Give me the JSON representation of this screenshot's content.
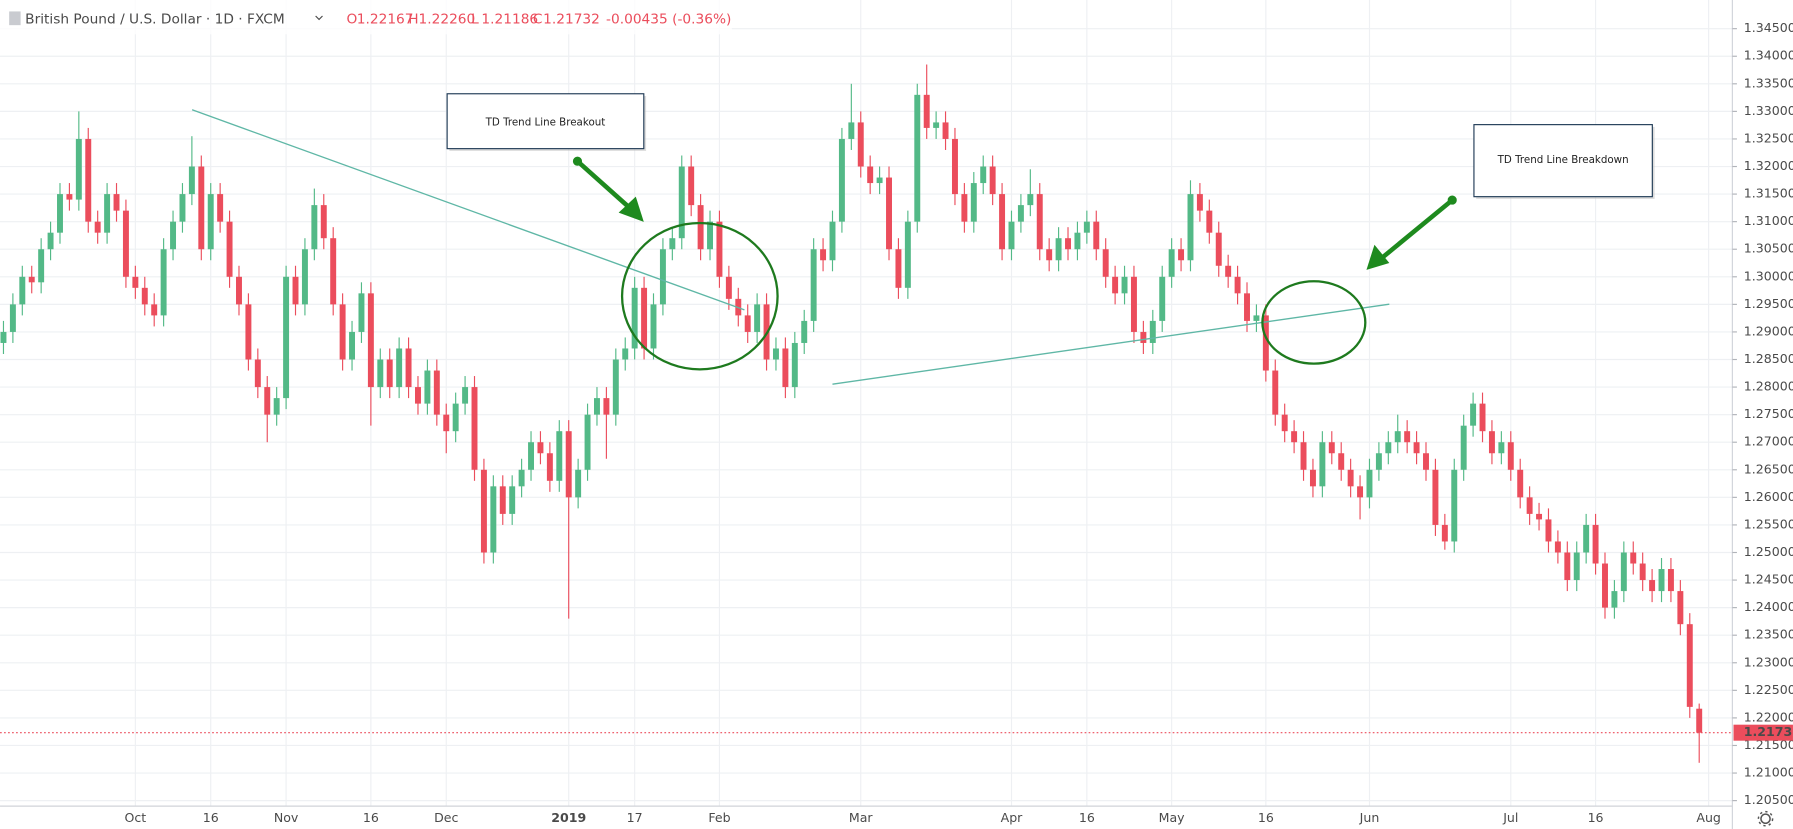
{
  "chart_data": {
    "type": "candlestick",
    "title": "British Pound / U.S. Dollar · 1D · FXCM",
    "ohlc_keys": [
      "O",
      "H",
      "L",
      "C"
    ],
    "header_values": [
      "1.22167",
      "1.22260",
      "1.21186",
      "1.21732"
    ],
    "change_label": "-0.00435 (-0.36%)",
    "annotations": [
      "TD Trend Line Breakout",
      "TD Trend Line Breakdown"
    ],
    "up_color": "#53b987",
    "down_color": "#eb4d5c",
    "grid": true,
    "categories": [
      null,
      null,
      null,
      null,
      null,
      null,
      null,
      null,
      null,
      null,
      null,
      null,
      null,
      null,
      "Oct",
      null,
      null,
      null,
      null,
      null,
      null,
      null,
      "16",
      null,
      null,
      null,
      null,
      null,
      null,
      null,
      "Nov",
      null,
      null,
      null,
      null,
      null,
      null,
      null,
      null,
      "16",
      null,
      null,
      null,
      null,
      null,
      null,
      null,
      "Dec",
      null,
      null,
      null,
      null,
      null,
      null,
      null,
      null,
      null,
      null,
      null,
      null,
      "2019",
      null,
      null,
      null,
      null,
      null,
      null,
      "17",
      null,
      null,
      null,
      null,
      null,
      null,
      null,
      null,
      "Feb",
      null,
      null,
      null,
      null,
      null,
      null,
      null,
      null,
      null,
      null,
      null,
      null,
      null,
      null,
      "Mar",
      null,
      null,
      null,
      null,
      null,
      null,
      null,
      null,
      null,
      null,
      null,
      null,
      null,
      null,
      null,
      "Apr",
      null,
      null,
      null,
      null,
      null,
      null,
      null,
      "16",
      null,
      null,
      null,
      null,
      null,
      null,
      null,
      null,
      "May",
      null,
      null,
      null,
      null,
      null,
      null,
      null,
      null,
      null,
      "16",
      null,
      null,
      null,
      null,
      null,
      null,
      null,
      null,
      null,
      null,
      "Jun",
      null,
      null,
      null,
      null,
      null,
      null,
      null,
      null,
      null,
      null,
      null,
      null,
      null,
      null,
      "Jul",
      null,
      null,
      null,
      null,
      null,
      null,
      null,
      null,
      "16",
      null,
      null,
      null,
      null,
      null,
      null,
      null,
      null,
      null,
      null,
      null,
      "Aug"
    ],
    "open": [
      1.288,
      1.29,
      1.295,
      1.3,
      1.299,
      1.305,
      1.308,
      1.315,
      1.314,
      1.325,
      1.31,
      1.308,
      1.315,
      1.312,
      1.3,
      1.298,
      1.295,
      1.293,
      1.305,
      1.31,
      1.315,
      1.32,
      1.305,
      1.315,
      1.31,
      1.3,
      1.295,
      1.285,
      1.28,
      1.275,
      1.278,
      1.3,
      1.295,
      1.305,
      1.313,
      1.307,
      1.295,
      1.285,
      1.29,
      1.297,
      1.28,
      1.285,
      1.28,
      1.287,
      1.28,
      1.277,
      1.283,
      1.275,
      1.272,
      1.277,
      1.28,
      1.265,
      1.25,
      1.262,
      1.257,
      1.262,
      1.265,
      1.27,
      1.268,
      1.263,
      1.272,
      1.26,
      1.265,
      1.275,
      1.278,
      1.275,
      1.285,
      1.287,
      1.298,
      1.287,
      1.295,
      1.305,
      1.307,
      1.32,
      1.313,
      1.305,
      1.31,
      1.3,
      1.296,
      1.293,
      1.29,
      1.295,
      1.285,
      1.287,
      1.28,
      1.288,
      1.292,
      1.305,
      1.303,
      1.31,
      1.325,
      1.328,
      1.32,
      1.317,
      1.318,
      1.305,
      1.298,
      1.31,
      1.333,
      1.327,
      1.328,
      1.325,
      1.315,
      1.31,
      1.317,
      1.32,
      1.315,
      1.305,
      1.31,
      1.313,
      1.315,
      1.305,
      1.303,
      1.307,
      1.305,
      1.308,
      1.31,
      1.305,
      1.3,
      1.297,
      1.3,
      1.29,
      1.288,
      1.292,
      1.3,
      1.305,
      1.303,
      1.315,
      1.312,
      1.308,
      1.302,
      1.3,
      1.297,
      1.292,
      1.293,
      1.283,
      1.275,
      1.272,
      1.27,
      1.265,
      1.262,
      1.27,
      1.268,
      1.265,
      1.262,
      1.26,
      1.265,
      1.268,
      1.27,
      1.272,
      1.27,
      1.268,
      1.265,
      1.255,
      1.252,
      1.265,
      1.273,
      1.277,
      1.272,
      1.268,
      1.27,
      1.265,
      1.26,
      1.257,
      1.256,
      1.252,
      1.25,
      1.245,
      1.25,
      1.255,
      1.248,
      1.24,
      1.243,
      1.25,
      1.248,
      1.245,
      1.243,
      1.247,
      1.243,
      1.237,
      1.22167,
      null
    ],
    "high": [
      1.292,
      1.297,
      1.302,
      1.302,
      1.307,
      1.31,
      1.317,
      1.317,
      1.33,
      1.327,
      1.312,
      1.317,
      1.317,
      1.314,
      1.302,
      1.3,
      1.297,
      1.307,
      1.312,
      1.317,
      1.3255,
      1.322,
      1.317,
      1.317,
      1.312,
      1.302,
      1.297,
      1.287,
      1.282,
      1.28,
      1.302,
      1.302,
      1.307,
      1.316,
      1.315,
      1.309,
      1.297,
      1.292,
      1.299,
      1.299,
      1.287,
      1.287,
      1.289,
      1.289,
      1.282,
      1.285,
      1.285,
      1.277,
      1.279,
      1.282,
      1.282,
      1.267,
      1.264,
      1.264,
      1.264,
      1.267,
      1.272,
      1.272,
      1.27,
      1.274,
      1.274,
      1.267,
      1.277,
      1.28,
      1.28,
      1.287,
      1.289,
      1.3,
      1.3,
      1.297,
      1.307,
      1.309,
      1.322,
      1.322,
      1.315,
      1.312,
      1.312,
      1.302,
      1.298,
      1.295,
      1.297,
      1.297,
      1.289,
      1.289,
      1.29,
      1.294,
      1.307,
      1.307,
      1.312,
      1.327,
      1.335,
      1.33,
      1.322,
      1.32,
      1.32,
      1.307,
      1.312,
      1.335,
      1.3385,
      1.33,
      1.33,
      1.327,
      1.317,
      1.319,
      1.322,
      1.322,
      1.317,
      1.312,
      1.315,
      1.3195,
      1.317,
      1.307,
      1.309,
      1.309,
      1.31,
      1.312,
      1.312,
      1.307,
      1.302,
      1.302,
      1.302,
      1.292,
      1.294,
      1.302,
      1.307,
      1.307,
      1.3175,
      1.317,
      1.314,
      1.31,
      1.304,
      1.302,
      1.299,
      1.295,
      1.295,
      1.285,
      1.277,
      1.274,
      1.272,
      1.267,
      1.272,
      1.272,
      1.27,
      1.267,
      1.264,
      1.267,
      1.27,
      1.272,
      1.275,
      1.274,
      1.272,
      1.27,
      1.267,
      1.257,
      1.267,
      1.275,
      1.279,
      1.279,
      1.274,
      1.272,
      1.272,
      1.267,
      1.262,
      1.259,
      1.258,
      1.254,
      1.252,
      1.252,
      1.257,
      1.257,
      1.25,
      1.245,
      1.252,
      1.252,
      1.25,
      1.247,
      1.249,
      1.249,
      1.245,
      1.239,
      1.2226,
      null
    ],
    "low": [
      1.286,
      1.288,
      1.293,
      1.297,
      1.297,
      1.303,
      1.306,
      1.312,
      1.312,
      1.308,
      1.306,
      1.306,
      1.31,
      1.298,
      1.296,
      1.293,
      1.291,
      1.291,
      1.303,
      1.308,
      1.313,
      1.303,
      1.303,
      1.308,
      1.298,
      1.293,
      1.283,
      1.278,
      1.27,
      1.273,
      1.276,
      1.293,
      1.293,
      1.303,
      1.305,
      1.293,
      1.283,
      1.283,
      1.288,
      1.273,
      1.278,
      1.278,
      1.278,
      1.278,
      1.275,
      1.275,
      1.273,
      1.268,
      1.27,
      1.275,
      1.263,
      1.248,
      1.248,
      1.255,
      1.255,
      1.26,
      1.263,
      1.266,
      1.261,
      1.261,
      1.238,
      1.258,
      1.263,
      1.273,
      1.267,
      1.273,
      1.283,
      1.285,
      1.285,
      1.285,
      1.293,
      1.303,
      1.305,
      1.311,
      1.303,
      1.303,
      1.298,
      1.294,
      1.291,
      1.288,
      1.288,
      1.283,
      1.283,
      1.278,
      1.278,
      1.286,
      1.29,
      1.301,
      1.301,
      1.308,
      1.323,
      1.318,
      1.315,
      1.315,
      1.303,
      1.296,
      1.296,
      1.308,
      1.325,
      1.325,
      1.323,
      1.313,
      1.308,
      1.308,
      1.315,
      1.313,
      1.303,
      1.303,
      1.308,
      1.311,
      1.303,
      1.301,
      1.301,
      1.303,
      1.303,
      1.306,
      1.303,
      1.298,
      1.295,
      1.295,
      1.288,
      1.286,
      1.286,
      1.29,
      1.298,
      1.301,
      1.301,
      1.31,
      1.306,
      1.3,
      1.298,
      1.295,
      1.29,
      1.29,
      1.281,
      1.273,
      1.27,
      1.268,
      1.263,
      1.26,
      1.26,
      1.266,
      1.263,
      1.26,
      1.256,
      1.258,
      1.263,
      1.266,
      1.268,
      1.268,
      1.266,
      1.263,
      1.253,
      1.2505,
      1.25,
      1.263,
      1.271,
      1.27,
      1.266,
      1.266,
      1.263,
      1.258,
      1.255,
      1.254,
      1.25,
      1.248,
      1.243,
      1.243,
      1.248,
      1.246,
      1.238,
      1.238,
      1.241,
      1.246,
      1.243,
      1.241,
      1.241,
      1.241,
      1.235,
      1.22,
      1.21186,
      null
    ],
    "close": [
      1.29,
      1.295,
      1.3,
      1.299,
      1.305,
      1.308,
      1.315,
      1.314,
      1.325,
      1.31,
      1.308,
      1.315,
      1.312,
      1.3,
      1.298,
      1.295,
      1.293,
      1.305,
      1.31,
      1.315,
      1.32,
      1.305,
      1.315,
      1.31,
      1.3,
      1.295,
      1.285,
      1.28,
      1.275,
      1.278,
      1.3,
      1.295,
      1.305,
      1.313,
      1.307,
      1.295,
      1.285,
      1.29,
      1.297,
      1.28,
      1.285,
      1.28,
      1.287,
      1.28,
      1.277,
      1.283,
      1.275,
      1.272,
      1.277,
      1.28,
      1.265,
      1.25,
      1.262,
      1.257,
      1.262,
      1.265,
      1.27,
      1.268,
      1.263,
      1.272,
      1.26,
      1.265,
      1.275,
      1.278,
      1.275,
      1.285,
      1.287,
      1.298,
      1.287,
      1.295,
      1.305,
      1.307,
      1.32,
      1.313,
      1.305,
      1.31,
      1.3,
      1.296,
      1.293,
      1.29,
      1.295,
      1.285,
      1.287,
      1.28,
      1.288,
      1.292,
      1.305,
      1.303,
      1.31,
      1.325,
      1.328,
      1.32,
      1.317,
      1.318,
      1.305,
      1.298,
      1.31,
      1.333,
      1.327,
      1.328,
      1.325,
      1.315,
      1.31,
      1.317,
      1.32,
      1.315,
      1.305,
      1.31,
      1.313,
      1.315,
      1.305,
      1.303,
      1.307,
      1.305,
      1.308,
      1.31,
      1.305,
      1.3,
      1.297,
      1.3,
      1.29,
      1.288,
      1.292,
      1.3,
      1.305,
      1.303,
      1.315,
      1.312,
      1.308,
      1.302,
      1.3,
      1.297,
      1.292,
      1.293,
      1.283,
      1.275,
      1.272,
      1.27,
      1.265,
      1.262,
      1.27,
      1.268,
      1.265,
      1.262,
      1.26,
      1.265,
      1.268,
      1.27,
      1.272,
      1.27,
      1.268,
      1.265,
      1.255,
      1.252,
      1.265,
      1.273,
      1.277,
      1.272,
      1.268,
      1.27,
      1.265,
      1.26,
      1.257,
      1.256,
      1.252,
      1.25,
      1.245,
      1.25,
      1.255,
      1.248,
      1.24,
      1.243,
      1.25,
      1.248,
      1.245,
      1.243,
      1.247,
      1.243,
      1.237,
      1.222,
      1.21732,
      null
    ],
    "ylim": [
      1.204,
      1.3502
    ],
    "yticks": [
      {
        "value": 1.205,
        "label": "1.20500"
      },
      {
        "value": 1.21,
        "label": "1.21000"
      },
      {
        "value": 1.215,
        "label": "1.21500"
      },
      {
        "value": 1.22,
        "label": "1.22000"
      },
      {
        "value": 1.225,
        "label": "1.22500"
      },
      {
        "value": 1.23,
        "label": "1.23000"
      },
      {
        "value": 1.235,
        "label": "1.23500"
      },
      {
        "value": 1.24,
        "label": "1.24000"
      },
      {
        "value": 1.245,
        "label": "1.24500"
      },
      {
        "value": 1.25,
        "label": "1.25000"
      },
      {
        "value": 1.255,
        "label": "1.25500"
      },
      {
        "value": 1.26,
        "label": "1.26000"
      },
      {
        "value": 1.265,
        "label": "1.26500"
      },
      {
        "value": 1.27,
        "label": "1.27000"
      },
      {
        "value": 1.275,
        "label": "1.27500"
      },
      {
        "value": 1.28,
        "label": "1.28000"
      },
      {
        "value": 1.285,
        "label": "1.28500"
      },
      {
        "value": 1.29,
        "label": "1.29000"
      },
      {
        "value": 1.295,
        "label": "1.29500"
      },
      {
        "value": 1.3,
        "label": "1.30000"
      },
      {
        "value": 1.305,
        "label": "1.30500"
      },
      {
        "value": 1.31,
        "label": "1.31000"
      },
      {
        "value": 1.315,
        "label": "1.31500"
      },
      {
        "value": 1.32,
        "label": "1.32000"
      },
      {
        "value": 1.325,
        "label": "1.32500"
      },
      {
        "value": 1.33,
        "label": "1.33000"
      },
      {
        "value": 1.335,
        "label": "1.33500"
      },
      {
        "value": 1.34,
        "label": "1.34000"
      },
      {
        "value": 1.345,
        "label": "1.34500"
      }
    ]
  }
}
